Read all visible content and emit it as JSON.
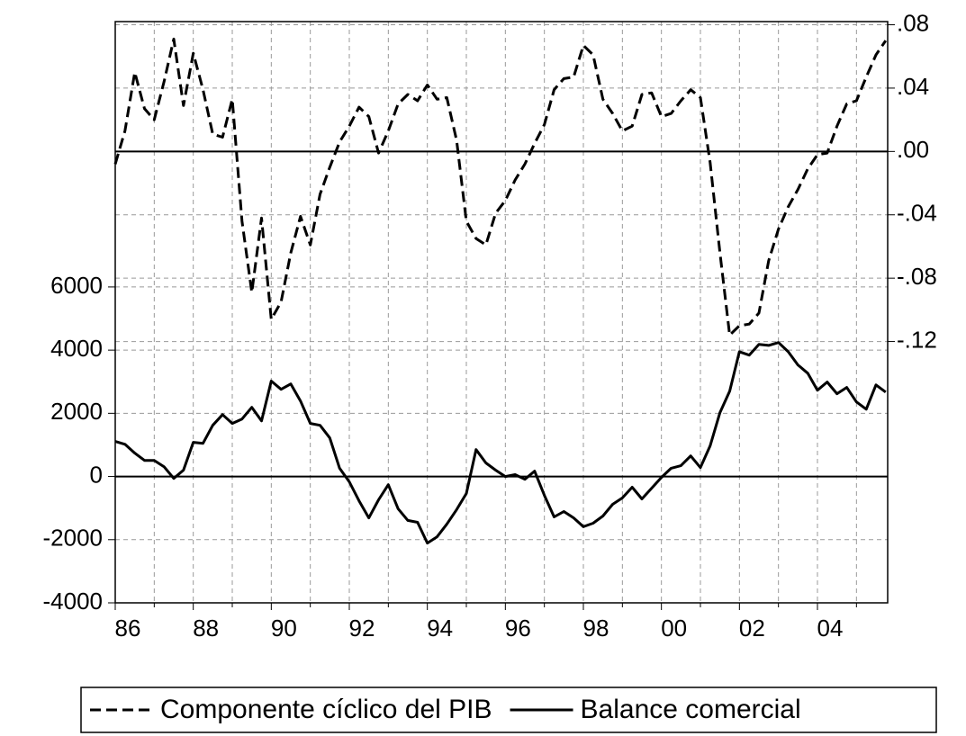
{
  "chart_data": {
    "type": "line",
    "x": [
      1986,
      1986.25,
      1986.5,
      1986.75,
      1987,
      1987.25,
      1987.5,
      1987.75,
      1988,
      1988.25,
      1988.5,
      1988.75,
      1989,
      1989.25,
      1989.5,
      1989.75,
      1990,
      1990.25,
      1990.5,
      1990.75,
      1991,
      1991.25,
      1991.5,
      1991.75,
      1992,
      1992.25,
      1992.5,
      1992.75,
      1993,
      1993.25,
      1993.5,
      1993.75,
      1994,
      1994.25,
      1994.5,
      1994.75,
      1995,
      1995.25,
      1995.5,
      1995.75,
      1996,
      1996.25,
      1996.5,
      1996.75,
      1997,
      1997.25,
      1997.5,
      1997.75,
      1998,
      1998.25,
      1998.5,
      1998.75,
      1999,
      1999.25,
      1999.5,
      1999.75,
      2000,
      2000.25,
      2000.5,
      2000.75,
      2001,
      2001.25,
      2001.5,
      2001.75,
      2002,
      2002.25,
      2002.5,
      2002.75,
      2003,
      2003.25,
      2003.5,
      2003.75,
      2004,
      2004.25,
      2004.5,
      2004.75,
      2005,
      2005.25,
      2005.5,
      2005.75
    ],
    "series": [
      {
        "name": "Componente cíclico del PIB",
        "color": "#000000",
        "dash": true,
        "axis": "y2",
        "values": [
          -0.008,
          0.013,
          0.05,
          0.027,
          0.02,
          0.044,
          0.071,
          0.029,
          0.062,
          0.039,
          0.011,
          0.009,
          0.033,
          -0.044,
          -0.089,
          -0.042,
          -0.106,
          -0.095,
          -0.064,
          -0.041,
          -0.059,
          -0.027,
          -0.01,
          0.006,
          0.016,
          0.028,
          0.022,
          -0.001,
          0.013,
          0.03,
          0.036,
          0.032,
          0.042,
          0.033,
          0.034,
          0.007,
          -0.044,
          -0.055,
          -0.059,
          -0.039,
          -0.031,
          -0.018,
          -0.008,
          0.005,
          0.017,
          0.039,
          0.046,
          0.047,
          0.067,
          0.061,
          0.033,
          0.024,
          0.013,
          0.016,
          0.036,
          0.037,
          0.022,
          0.024,
          0.032,
          0.039,
          0.034,
          -0.007,
          -0.064,
          -0.116,
          -0.11,
          -0.109,
          -0.102,
          -0.069,
          -0.049,
          -0.035,
          -0.024,
          -0.011,
          -0.002,
          -0.001,
          0.016,
          0.03,
          0.032,
          0.047,
          0.061,
          0.07
        ]
      },
      {
        "name": "Balance comercial",
        "color": "#000000",
        "dash": false,
        "axis": "y",
        "values": [
          1110,
          1020,
          740,
          510,
          510,
          310,
          -60,
          200,
          1080,
          1050,
          1620,
          1960,
          1680,
          1820,
          2190,
          1760,
          3020,
          2760,
          2930,
          2390,
          1680,
          1620,
          1220,
          260,
          -170,
          -770,
          -1310,
          -740,
          -260,
          -1020,
          -1390,
          -1450,
          -2110,
          -1910,
          -1510,
          -1050,
          -540,
          850,
          430,
          200,
          0,
          60,
          -90,
          170,
          -600,
          -1280,
          -1110,
          -1310,
          -1590,
          -1480,
          -1250,
          -880,
          -680,
          -340,
          -710,
          -370,
          -30,
          260,
          340,
          650,
          280,
          970,
          2020,
          2700,
          3950,
          3840,
          4180,
          4150,
          4240,
          3950,
          3530,
          3270,
          2730,
          2990,
          2620,
          2820,
          2360,
          2130,
          2900,
          2670
        ]
      }
    ],
    "xlim": [
      1986,
      2005.8
    ],
    "xticks": [
      {
        "value": 1986,
        "label": "86"
      },
      {
        "value": 1988,
        "label": "88"
      },
      {
        "value": 1990,
        "label": "90"
      },
      {
        "value": 1992,
        "label": "92"
      },
      {
        "value": 1994,
        "label": "94"
      },
      {
        "value": 1996,
        "label": "96"
      },
      {
        "value": 1998,
        "label": "98"
      },
      {
        "value": 2000,
        "label": "00"
      },
      {
        "value": 2002,
        "label": "02"
      },
      {
        "value": 2004,
        "label": "04"
      }
    ],
    "xminor": [
      1987,
      1989,
      1991,
      1993,
      1995,
      1997,
      1999,
      2001,
      2003,
      2005
    ],
    "ylim": [
      -4000,
      14400
    ],
    "yticks": [
      -4000,
      -2000,
      0,
      2000,
      4000,
      6000
    ],
    "y2lim": [
      -0.285,
      0.082
    ],
    "y2ticks": [
      {
        "value": -0.12,
        "label": "-.12"
      },
      {
        "value": -0.08,
        "label": "-.08"
      },
      {
        "value": -0.04,
        "label": "-.04"
      },
      {
        "value": 0,
        "label": ".00"
      },
      {
        "value": 0.04,
        "label": ".04"
      },
      {
        "value": 0.08,
        "label": ".08"
      }
    ],
    "grid": true
  }
}
